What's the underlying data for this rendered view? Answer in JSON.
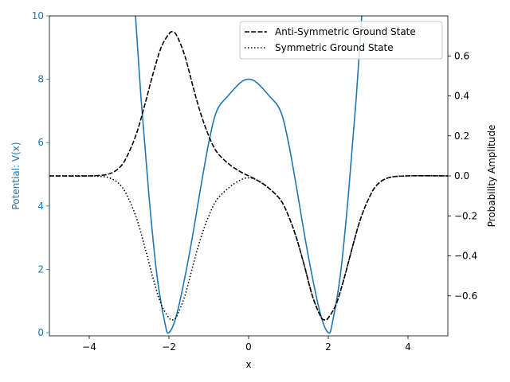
{
  "chart_data": {
    "type": "line",
    "xlabel": "x",
    "ylabel_left": "Potential: V(x)",
    "ylabel_right": "Probability Amplitude",
    "xlim": [
      -5,
      5
    ],
    "ylim_left": [
      -0.1,
      10
    ],
    "ylim_right": [
      -0.8,
      0.8
    ],
    "x_ticks": [
      -4,
      -2,
      0,
      2,
      4
    ],
    "y_ticks_left": [
      0,
      2,
      4,
      6,
      8,
      10
    ],
    "y_ticks_right": [
      -0.6,
      -0.4,
      -0.2,
      0.0,
      0.2,
      0.4,
      0.6
    ],
    "grid": false,
    "legend_position": "top-right",
    "colors": {
      "potential": "#1f77b4",
      "wavefunction": "#000000",
      "left_axis_text": "#1f77b4"
    },
    "series": [
      {
        "name": "",
        "axis": "left",
        "style": "solid",
        "x": [
          -2.9,
          -2.7,
          -2.5,
          -2.3,
          -2.1,
          -2.0,
          -1.8,
          -1.5,
          -1.2,
          -1.0,
          -0.8,
          -0.5,
          -0.2,
          0.0,
          0.2,
          0.5,
          0.8,
          1.0,
          1.2,
          1.5,
          1.8,
          2.0,
          2.1,
          2.3,
          2.5,
          2.7,
          2.9
        ],
        "y": [
          11.2,
          7.4,
          4.3,
          1.8,
          0.3,
          0.0,
          0.6,
          2.4,
          4.6,
          6.0,
          7.0,
          7.5,
          7.9,
          8.0,
          7.9,
          7.5,
          7.0,
          6.0,
          4.6,
          2.4,
          0.6,
          0.0,
          0.3,
          1.8,
          4.3,
          7.4,
          11.2
        ]
      },
      {
        "name": "Anti-Symmetric Ground State",
        "axis": "right",
        "style": "dashed",
        "x": [
          -5.0,
          -4.0,
          -3.5,
          -3.2,
          -3.0,
          -2.8,
          -2.6,
          -2.4,
          -2.2,
          -2.0,
          -1.9,
          -1.8,
          -1.6,
          -1.4,
          -1.2,
          -1.0,
          -0.8,
          -0.5,
          -0.2,
          0.0,
          0.2,
          0.5,
          0.8,
          1.0,
          1.2,
          1.4,
          1.6,
          1.8,
          1.9,
          2.0,
          2.2,
          2.4,
          2.6,
          2.8,
          3.0,
          3.2,
          3.5,
          4.0,
          5.0
        ],
        "y": [
          0.0,
          0.0,
          0.01,
          0.05,
          0.12,
          0.22,
          0.36,
          0.51,
          0.64,
          0.71,
          0.72,
          0.7,
          0.6,
          0.45,
          0.31,
          0.2,
          0.12,
          0.06,
          0.02,
          0.0,
          -0.02,
          -0.06,
          -0.12,
          -0.2,
          -0.31,
          -0.45,
          -0.6,
          -0.7,
          -0.72,
          -0.71,
          -0.64,
          -0.51,
          -0.36,
          -0.22,
          -0.12,
          -0.05,
          -0.01,
          0.0,
          0.0
        ]
      },
      {
        "name": "Symmetric Ground State",
        "axis": "right",
        "style": "dotted",
        "x": [
          -5.0,
          -4.0,
          -3.5,
          -3.2,
          -3.0,
          -2.8,
          -2.6,
          -2.4,
          -2.2,
          -2.0,
          -1.9,
          -1.8,
          -1.6,
          -1.4,
          -1.2,
          -1.0,
          -0.8,
          -0.5,
          -0.2,
          0.0,
          0.2,
          0.5,
          0.8,
          1.0,
          1.2,
          1.4,
          1.6,
          1.8,
          1.9,
          2.0,
          2.2,
          2.4,
          2.6,
          2.8,
          3.0,
          3.2,
          3.5,
          4.0,
          5.0
        ],
        "y": [
          0.0,
          0.0,
          -0.01,
          -0.05,
          -0.12,
          -0.22,
          -0.36,
          -0.51,
          -0.64,
          -0.71,
          -0.72,
          -0.7,
          -0.6,
          -0.45,
          -0.31,
          -0.2,
          -0.12,
          -0.06,
          -0.02,
          -0.01,
          -0.02,
          -0.06,
          -0.12,
          -0.2,
          -0.31,
          -0.45,
          -0.6,
          -0.7,
          -0.72,
          -0.71,
          -0.64,
          -0.51,
          -0.36,
          -0.22,
          -0.12,
          -0.05,
          -0.01,
          0.0,
          0.0
        ]
      }
    ]
  }
}
